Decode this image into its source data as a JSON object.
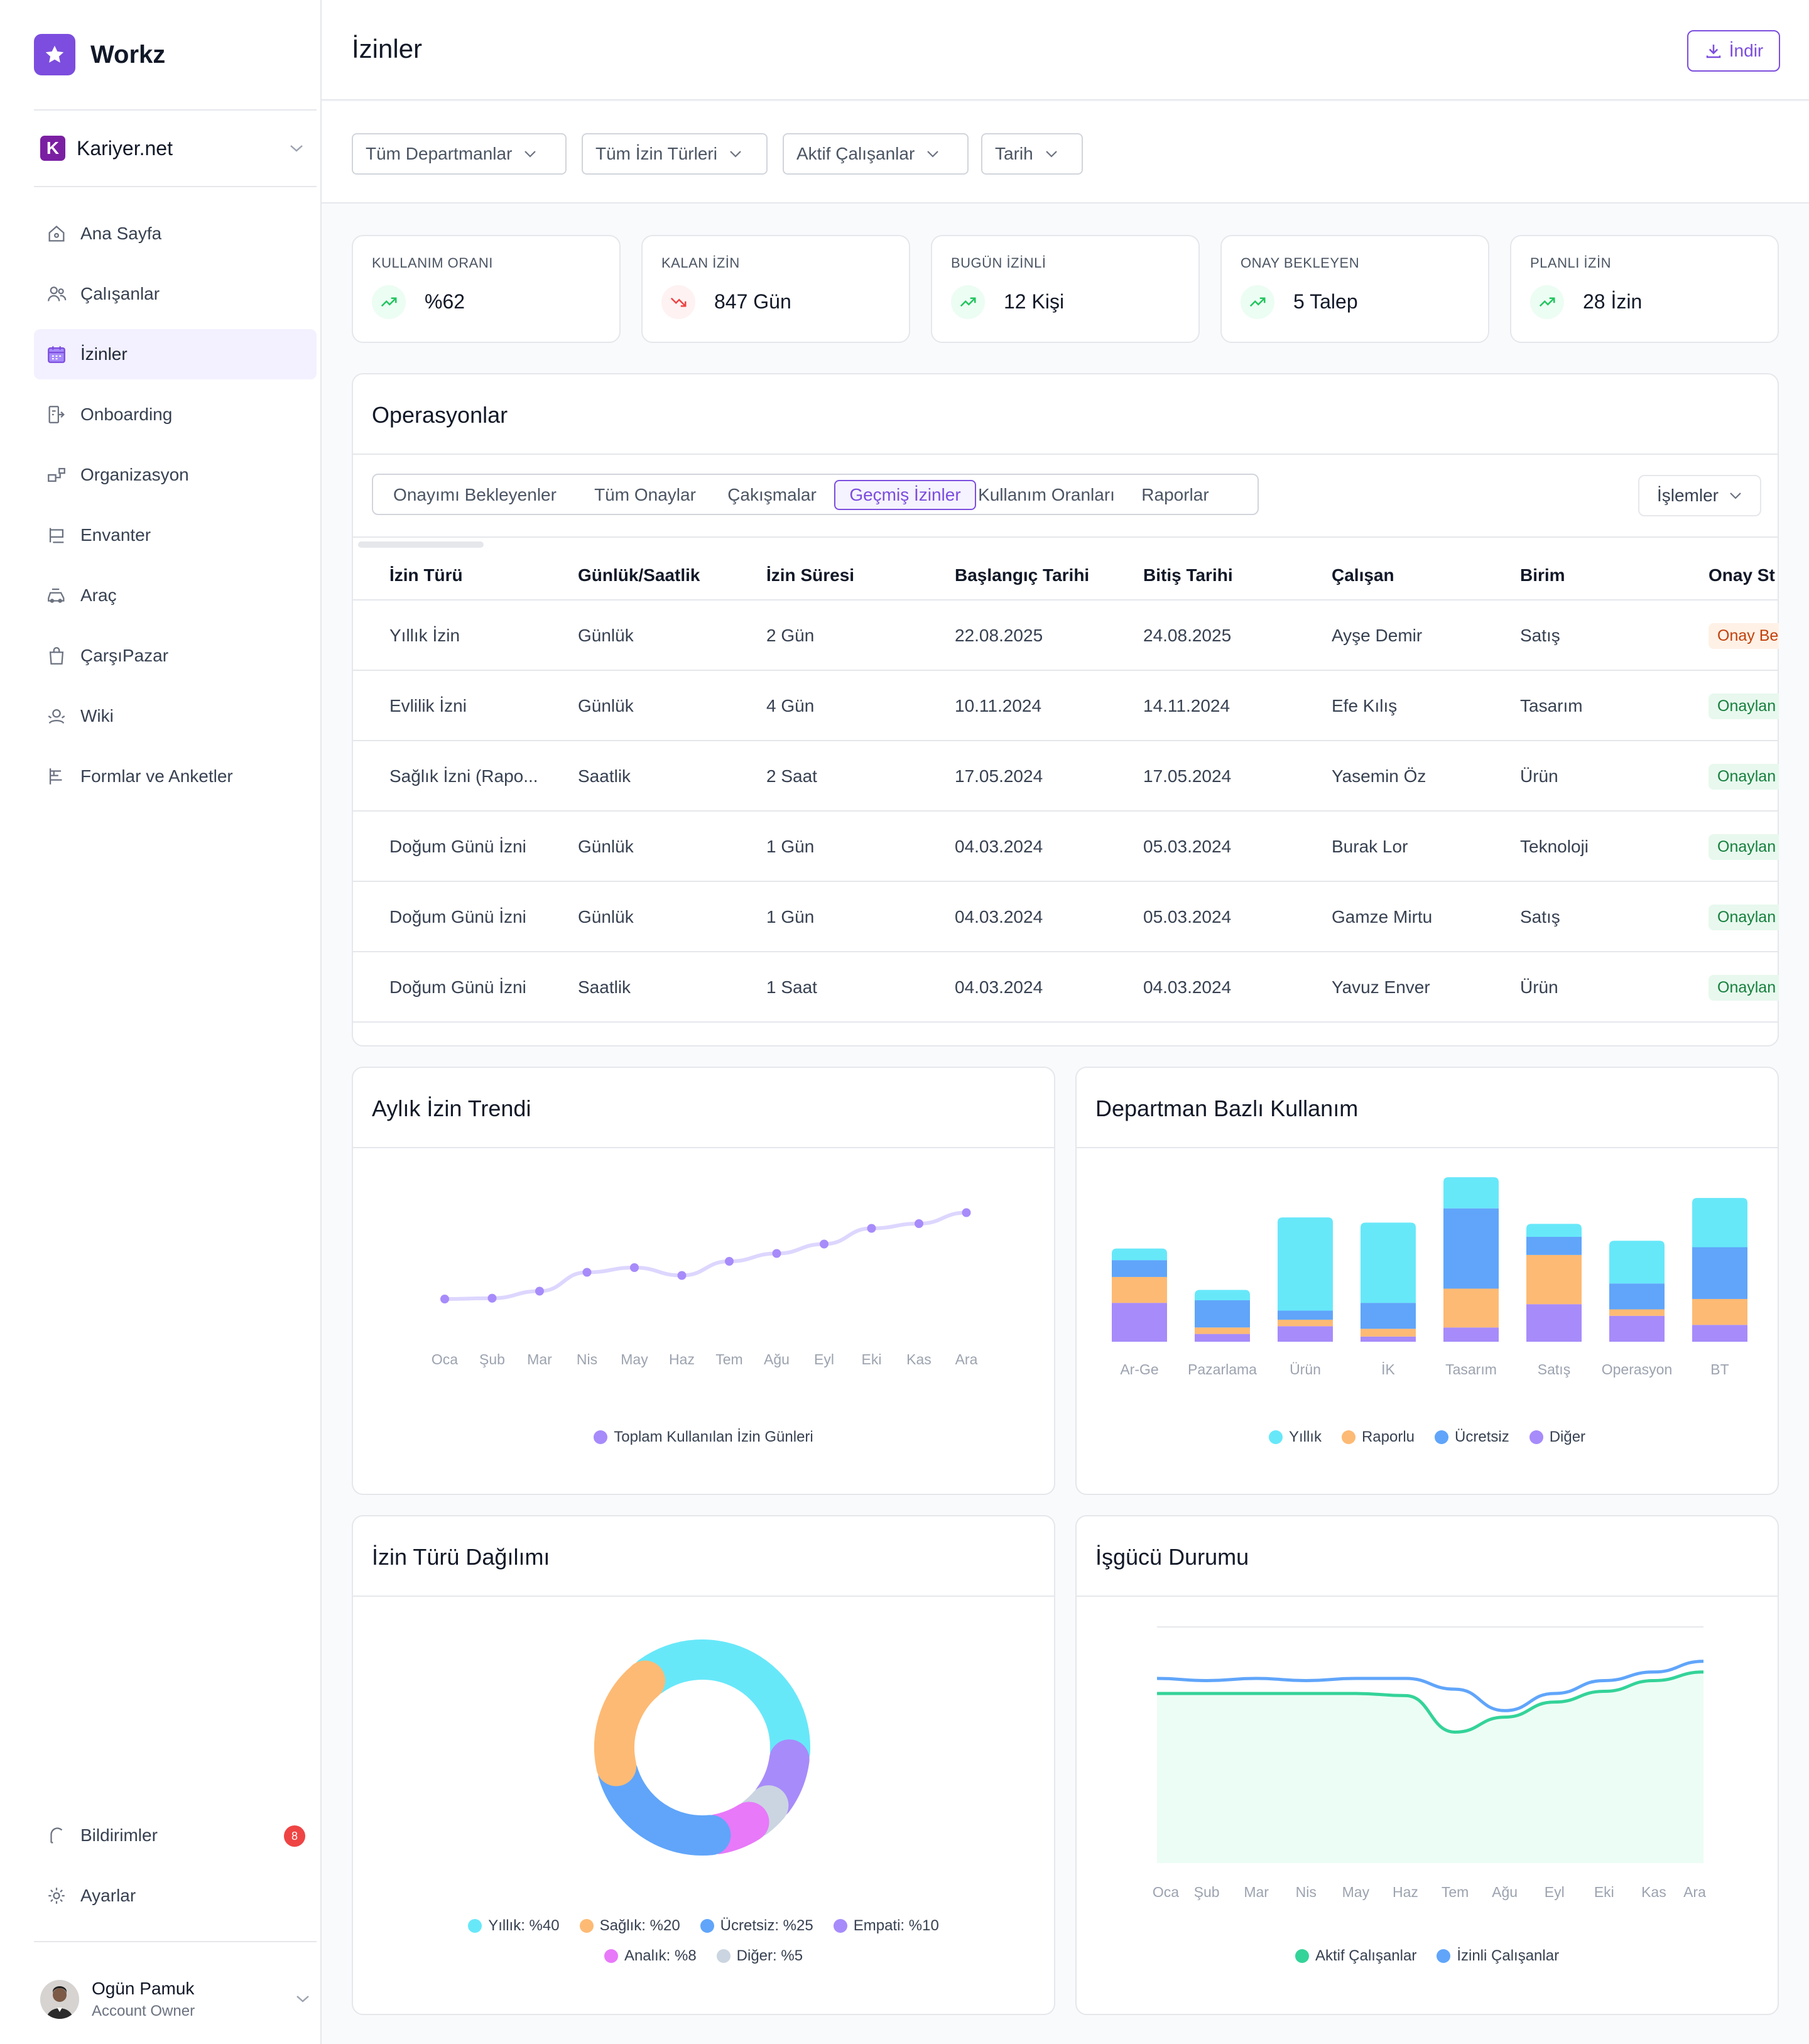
{
  "brand": {
    "name": "Workz"
  },
  "company": {
    "name": "Kariyer.net",
    "badge_letter": "K"
  },
  "nav": [
    {
      "label": "Ana Sayfa",
      "icon": "home-icon"
    },
    {
      "label": "Çalışanlar",
      "icon": "users-icon"
    },
    {
      "label": "İzinler",
      "icon": "calendar-icon",
      "active": true
    },
    {
      "label": "Onboarding",
      "icon": "onboarding-icon"
    },
    {
      "label": "Organizasyon",
      "icon": "organization-icon"
    },
    {
      "label": "Envanter",
      "icon": "inventory-icon"
    },
    {
      "label": "Araç",
      "icon": "car-icon"
    },
    {
      "label": "ÇarşıPazar",
      "icon": "shopping-bag-icon"
    },
    {
      "label": "Wiki",
      "icon": "wiki-icon"
    },
    {
      "label": "Formlar ve Anketler",
      "icon": "forms-icon"
    }
  ],
  "nav_bottom": [
    {
      "label": "Bildirimler",
      "icon": "bell-icon",
      "badge": "8"
    },
    {
      "label": "Ayarlar",
      "icon": "settings-icon"
    }
  ],
  "user": {
    "name": "Ogün Pamuk",
    "role": "Account Owner"
  },
  "header": {
    "title": "İzinler",
    "download_label": "İndir"
  },
  "filters": [
    "Tüm Departmanlar",
    "Tüm İzin Türleri",
    "Aktif Çalışanlar",
    "Tarih"
  ],
  "stats": [
    {
      "label": "KULLANIM ORANI",
      "value": "%62",
      "trend": "up"
    },
    {
      "label": "KALAN İZİN",
      "value": "847 Gün",
      "trend": "down"
    },
    {
      "label": "BUGÜN İZİNLİ",
      "value": "12 Kişi",
      "trend": "up"
    },
    {
      "label": "ONAY BEKLEYEN",
      "value": "5 Talep",
      "trend": "up"
    },
    {
      "label": "PLANLI İZİN",
      "value": "28 İzin",
      "trend": "up"
    }
  ],
  "operations": {
    "title": "Operasyonlar",
    "tabs": [
      "Onayımı Bekleyenler",
      "Tüm Onaylar",
      "Çakışmalar",
      "Geçmiş İzinler",
      "Kullanım Oranları",
      "Raporlar"
    ],
    "active_tab": 3,
    "actions_label": "İşlemler",
    "columns": [
      "İzin Türü",
      "Günlük/Saatlik",
      "İzin Süresi",
      "Başlangıç Tarihi",
      "Bitiş Tarihi",
      "Çalışan",
      "Birim",
      "Onay St"
    ],
    "rows": [
      {
        "type": "Yıllık İzin",
        "unit": "Günlük",
        "duration": "2 Gün",
        "start": "22.08.2025",
        "end": "24.08.2025",
        "employee": "Ayşe Demir",
        "dept": "Satış",
        "status": "Onay Be",
        "status_kind": "pending"
      },
      {
        "type": "Evlilik İzni",
        "unit": "Günlük",
        "duration": "4 Gün",
        "start": "10.11.2024",
        "end": "14.11.2024",
        "employee": "Efe Kılış",
        "dept": "Tasarım",
        "status": "Onaylan",
        "status_kind": "ok"
      },
      {
        "type": "Sağlık İzni (Rapo...",
        "unit": "Saatlik",
        "duration": "2 Saat",
        "start": "17.05.2024",
        "end": "17.05.2024",
        "employee": "Yasemin Öz",
        "dept": "Ürün",
        "status": "Onaylan",
        "status_kind": "ok"
      },
      {
        "type": "Doğum Günü İzni",
        "unit": "Günlük",
        "duration": "1 Gün",
        "start": "04.03.2024",
        "end": "05.03.2024",
        "employee": "Burak Lor",
        "dept": "Teknoloji",
        "status": "Onaylan",
        "status_kind": "ok"
      },
      {
        "type": "Doğum Günü İzni",
        "unit": "Günlük",
        "duration": "1 Gün",
        "start": "04.03.2024",
        "end": "05.03.2024",
        "employee": "Gamze Mirtu",
        "dept": "Satış",
        "status": "Onaylan",
        "status_kind": "ok"
      },
      {
        "type": "Doğum Günü İzni",
        "unit": "Saatlik",
        "duration": "1 Saat",
        "start": "04.03.2024",
        "end": "04.03.2024",
        "employee": "Yavuz Enver",
        "dept": "Ürün",
        "status": "Onaylan",
        "status_kind": "ok"
      }
    ]
  },
  "panels": {
    "trend_title": "Aylık İzin Trendi",
    "dept_title": "Departman Bazlı Kullanım",
    "dist_title": "İzin Türü Dağılımı",
    "workforce_title": "İşgücü Durumu"
  },
  "colors": {
    "accent": "#7c4dde",
    "cyan": "#67e8f9",
    "orange": "#fdba74",
    "blue": "#60a5fa",
    "purple": "#a78bfa",
    "pink": "#e879f9",
    "gray": "#cbd5e1",
    "green": "#34d399"
  },
  "chart_data": [
    {
      "type": "line",
      "categories": [
        "Oca",
        "Şub",
        "Mar",
        "Nis",
        "May",
        "Haz",
        "Tem",
        "Ağu",
        "Eyl",
        "Eki",
        "Kas",
        "Ara"
      ],
      "series": [
        {
          "name": "Toplam Kullanılan İzin Günleri",
          "values": [
            20,
            20.5,
            25,
            37,
            40,
            35,
            44,
            49,
            55,
            65,
            68,
            75
          ]
        }
      ],
      "ylim": [
        0,
        100
      ],
      "grid": false,
      "legend": "bottom",
      "color": "#a78bfa"
    },
    {
      "type": "bar",
      "stacked": true,
      "categories": [
        "Ar-Ge",
        "Pazarlama",
        "Ürün",
        "İK",
        "Tasarım",
        "Satış",
        "Operasyon",
        "BT"
      ],
      "series": [
        {
          "name": "Diğer",
          "color": "#a78bfa",
          "values": [
            30,
            6,
            12,
            4,
            11,
            29,
            20,
            13
          ]
        },
        {
          "name": "Raporlu",
          "color": "#fdba74",
          "values": [
            20,
            5,
            5,
            6,
            30,
            38,
            5,
            20
          ]
        },
        {
          "name": "Ücretsiz",
          "color": "#60a5fa",
          "values": [
            13,
            21,
            7,
            20,
            62,
            14,
            20,
            40
          ]
        },
        {
          "name": "Yıllık",
          "color": "#67e8f9",
          "values": [
            9,
            8,
            72,
            62,
            24,
            10,
            33,
            38
          ]
        }
      ],
      "legend_order": [
        "Yıllık",
        "Raporlu",
        "Ücretsiz",
        "Diğer"
      ],
      "ylim": [
        0,
        130
      ],
      "grid": false,
      "legend": "bottom"
    },
    {
      "type": "pie",
      "donut": true,
      "slices": [
        {
          "label": "Yıllık: %40",
          "value": 40,
          "color": "#67e8f9"
        },
        {
          "label": "Empati: %10",
          "value": 10,
          "color": "#a78bfa"
        },
        {
          "label": "Diğer: %5",
          "value": 5,
          "color": "#cbd5e1"
        },
        {
          "label": "Analık: %8",
          "value": 8,
          "color": "#e879f9"
        },
        {
          "label": "Ücretsiz: %25",
          "value": 25,
          "color": "#60a5fa"
        },
        {
          "label": "Sağlık: %20",
          "value": 20,
          "color": "#fdba74"
        }
      ],
      "legend_rows": [
        [
          "Yıllık: %40",
          "Sağlık: %20",
          "Ücretsiz: %25",
          "Empati: %10"
        ],
        [
          "Analık: %8",
          "Diğer: %5"
        ]
      ],
      "legend": "bottom"
    },
    {
      "type": "area",
      "categories": [
        "Oca",
        "Şub",
        "Mar",
        "Nis",
        "May",
        "Haz",
        "Tem",
        "Ağu",
        "Eyl",
        "Eki",
        "Kas",
        "Ara"
      ],
      "series": [
        {
          "name": "Aktif Çalışanlar",
          "color": "#34d399",
          "values": [
            79,
            79,
            79,
            79,
            79,
            78,
            61,
            68,
            75,
            80,
            85,
            89
          ]
        },
        {
          "name": "İzinli Çalışanlar",
          "color": "#60a5fa",
          "values": [
            86,
            85,
            86,
            85,
            86,
            86,
            81,
            71,
            79,
            85,
            89,
            94
          ]
        }
      ],
      "ylim": [
        0,
        110
      ],
      "grid": false,
      "legend": "bottom"
    }
  ]
}
